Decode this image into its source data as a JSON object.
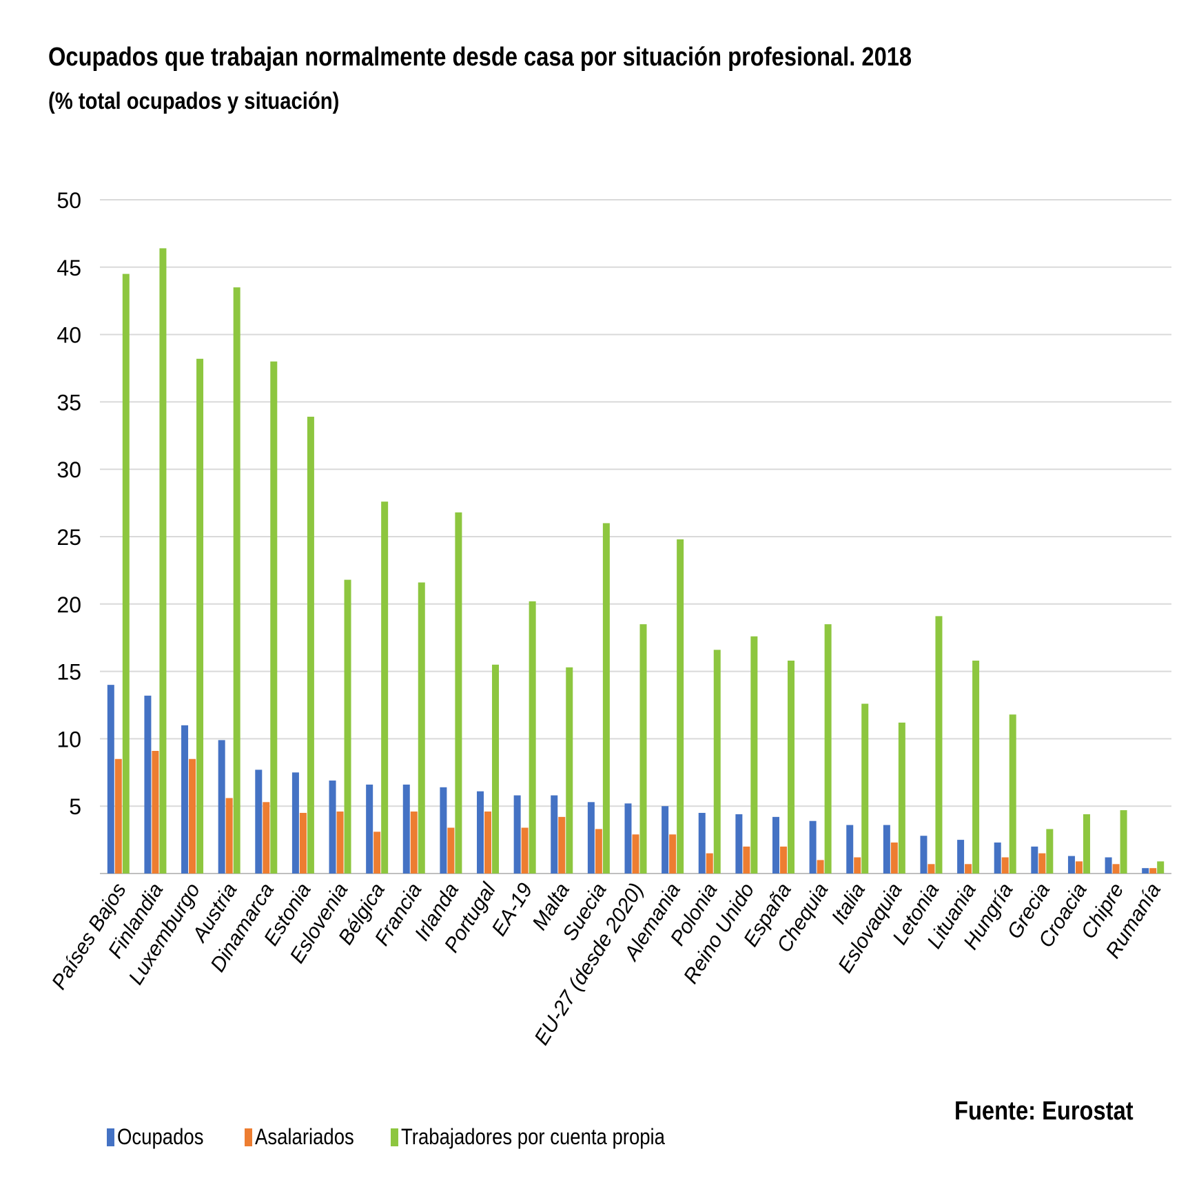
{
  "title": "Ocupados que trabajan normalmente desde casa por situación profesional. 2018",
  "subtitle": "(% total ocupados y situación)",
  "source": "Fuente: Eurostat",
  "colors": {
    "ocupados": "#4472C4",
    "asalariados": "#ED7D31",
    "cuenta_propia": "#8DC63F",
    "grid": "#d9d9d9",
    "axis": "#bfbfbf"
  },
  "chart_data": {
    "type": "bar",
    "ylim": [
      0,
      50
    ],
    "yticks": [
      5,
      10,
      15,
      20,
      25,
      30,
      35,
      40,
      45,
      50
    ],
    "grid": true,
    "legend_position": "bottom-left",
    "categories": [
      "Países Bajos",
      "Finlandia",
      "Luxemburgo",
      "Austria",
      "Dinamarca",
      "Estonia",
      "Eslovenia",
      "Bélgica",
      "Francia",
      "Irlanda",
      "Portugal",
      "EA-19",
      "Malta",
      "Suecia",
      "EU-27 (desde 2020)",
      "Alemania",
      "Polonia",
      "Reino Unido",
      "España",
      "Chequia",
      "Italia",
      "Eslovaquia",
      "Letonia",
      "Lituania",
      "Hungría",
      "Grecia",
      "Croacia",
      "Chipre",
      "Rumanía"
    ],
    "series": [
      {
        "name": "Ocupados",
        "color": "#4472C4",
        "values": [
          14.0,
          13.2,
          11.0,
          9.9,
          7.7,
          7.5,
          6.9,
          6.6,
          6.6,
          6.4,
          6.1,
          5.8,
          5.8,
          5.3,
          5.2,
          5.0,
          4.5,
          4.4,
          4.2,
          3.9,
          3.6,
          3.6,
          2.8,
          2.5,
          2.3,
          2.0,
          1.3,
          1.2,
          0.4
        ]
      },
      {
        "name": "Asalariados",
        "color": "#ED7D31",
        "values": [
          8.5,
          9.1,
          8.5,
          5.6,
          5.3,
          4.5,
          4.6,
          3.1,
          4.6,
          3.4,
          4.6,
          3.4,
          4.2,
          3.3,
          2.9,
          2.9,
          1.5,
          2.0,
          2.0,
          1.0,
          1.2,
          2.3,
          0.7,
          0.7,
          1.2,
          1.5,
          0.9,
          0.7,
          0.4
        ]
      },
      {
        "name": "Trabajadores por cuenta propia",
        "color": "#8DC63F",
        "values": [
          44.5,
          46.4,
          38.2,
          43.5,
          38.0,
          33.9,
          21.8,
          27.6,
          21.6,
          26.8,
          15.5,
          20.2,
          15.3,
          26.0,
          18.5,
          24.8,
          16.6,
          17.6,
          15.8,
          18.5,
          12.6,
          11.2,
          19.1,
          15.8,
          11.8,
          3.3,
          4.4,
          4.7,
          0.9
        ]
      }
    ]
  }
}
